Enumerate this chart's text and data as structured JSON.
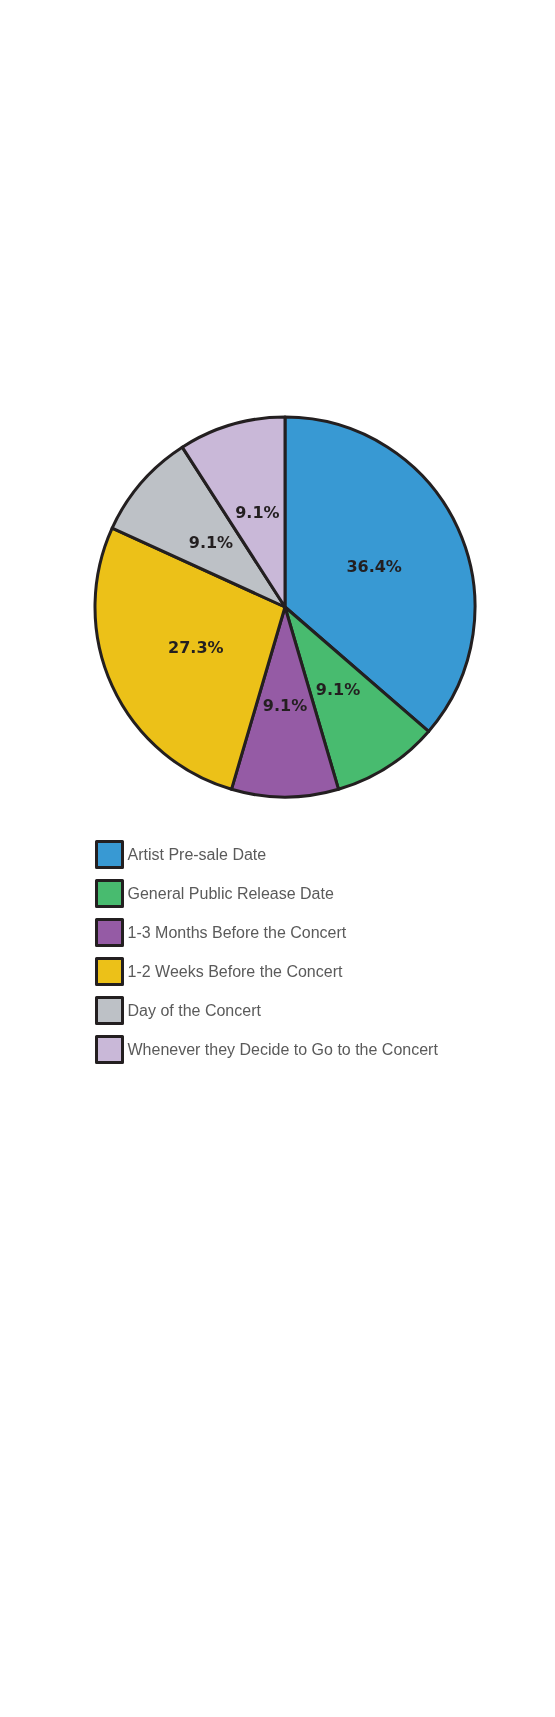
{
  "chart_data": {
    "type": "pie",
    "categories": [
      "Artist Pre-sale Date",
      "General Public Release Date",
      "1-3 Months Before the Concert",
      "1-2 Weeks Before the Concert",
      "Day of the Concert",
      "Whenever they Decide to Go to the Concert"
    ],
    "values": [
      36.4,
      9.1,
      9.1,
      27.3,
      9.1,
      9.1
    ],
    "colors": [
      "#3899d3",
      "#48bb6f",
      "#955ba5",
      "#ecc118",
      "#bdc1c6",
      "#c9b8d8"
    ],
    "value_labels": [
      "36.4%",
      "9.1%",
      "9.1%",
      "27.3%",
      "9.1%",
      "9.1%"
    ],
    "legend": "bottom"
  }
}
